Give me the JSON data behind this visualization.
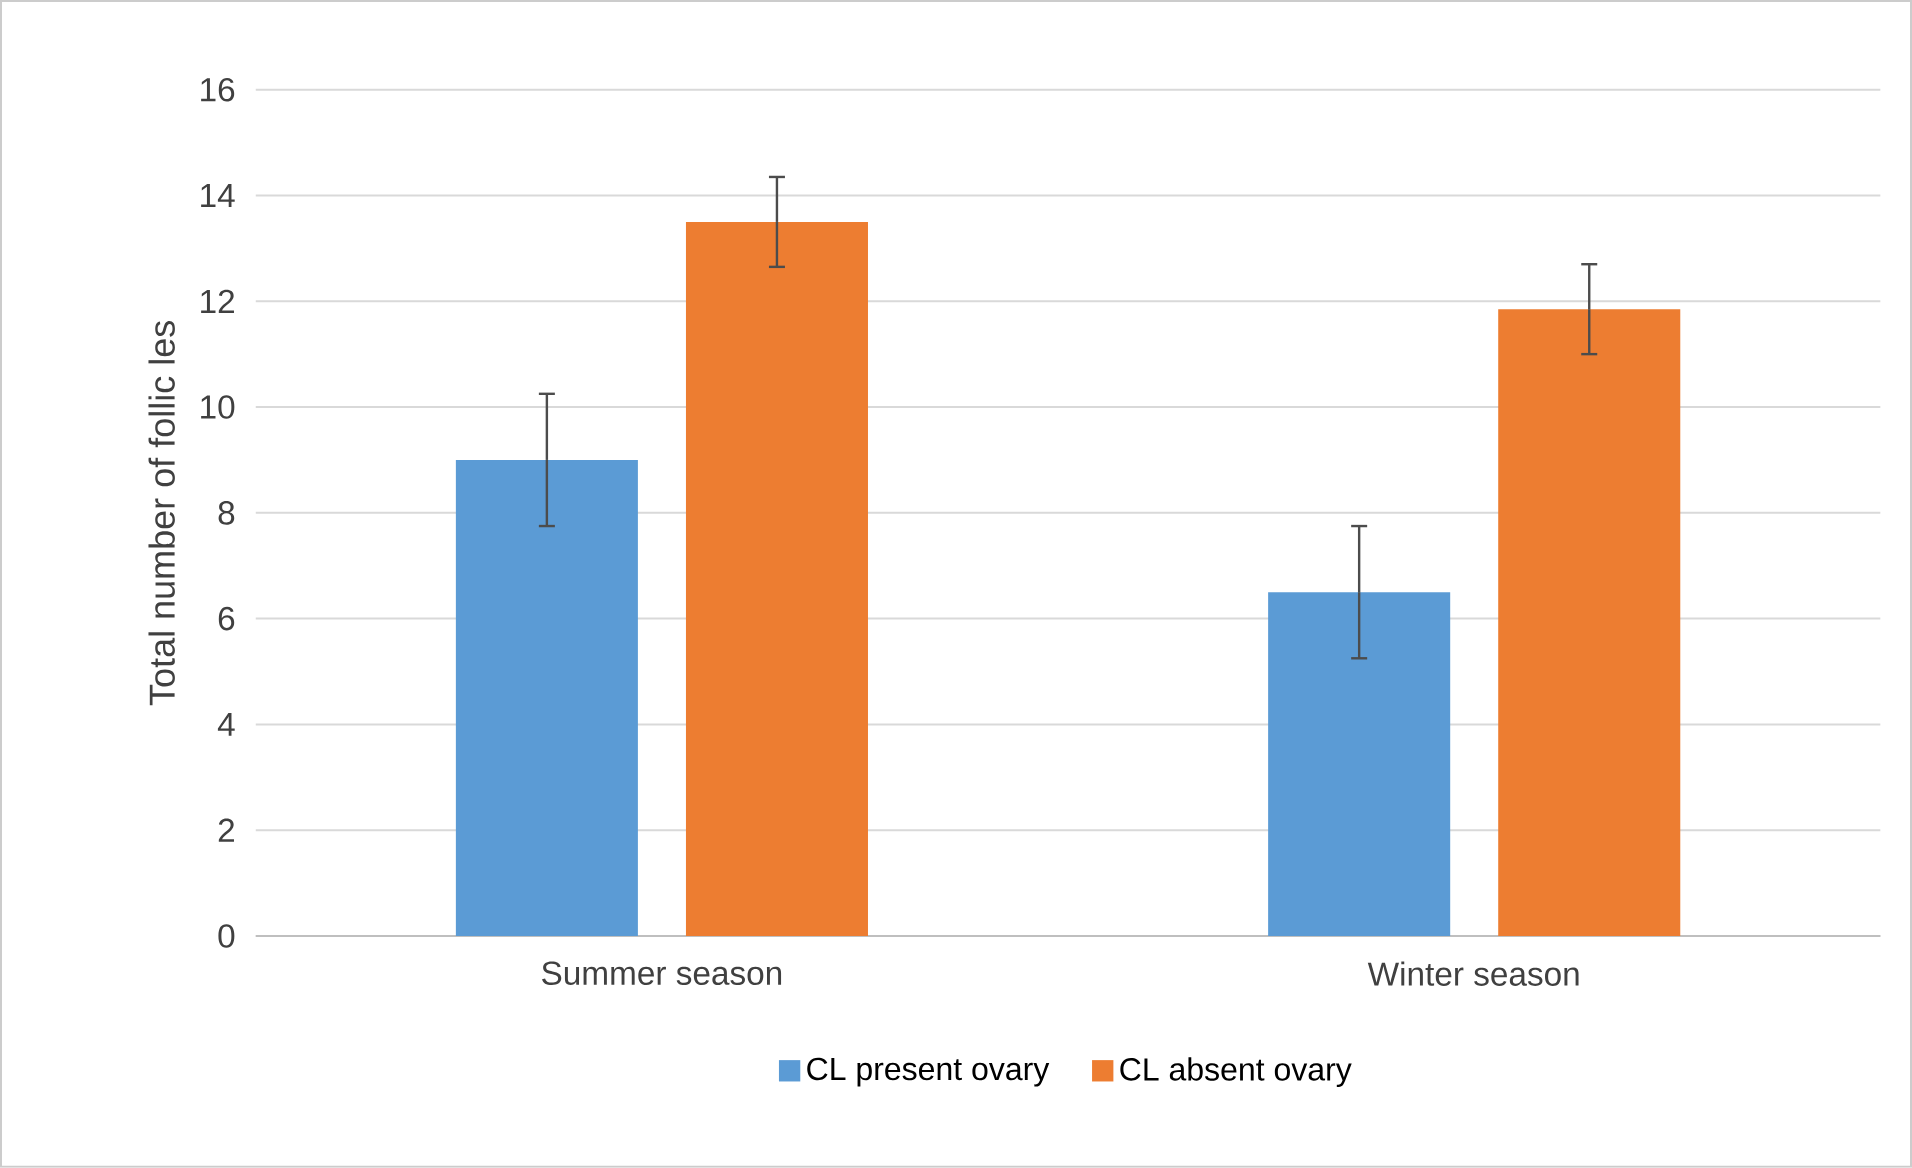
{
  "chart_data": {
    "type": "bar",
    "ylabel": "Total number of follic les",
    "categories": [
      "Summer season",
      "Winter season"
    ],
    "series": [
      {
        "name": "CL present ovary",
        "color": "#5b9bd5",
        "values": [
          9.0,
          6.5
        ],
        "errors": [
          1.25,
          1.25
        ]
      },
      {
        "name": "CL absent ovary",
        "color": "#ed7d31",
        "values": [
          13.5,
          11.85
        ],
        "errors": [
          0.85,
          0.85
        ]
      }
    ],
    "ylim": [
      0,
      16
    ],
    "yticks": [
      0,
      2,
      4,
      6,
      8,
      10,
      12,
      14,
      16
    ],
    "grid": "y",
    "legend": "bottom"
  }
}
